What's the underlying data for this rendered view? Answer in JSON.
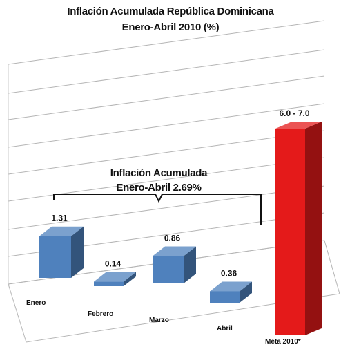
{
  "chart_data": {
    "type": "bar",
    "title": "Inflación Acumulada República Dominicana",
    "subtitle": "Enero-Abril 2010 (%)",
    "categories": [
      "Enero",
      "Febrero",
      "Marzo",
      "Abril",
      "Meta 2010*"
    ],
    "values": [
      1.31,
      0.14,
      0.86,
      0.36,
      6.5
    ],
    "data_labels": [
      "1.31",
      "0.14",
      "0.86",
      "0.36",
      "6.0 - 7.0"
    ],
    "colors": [
      "#4f81bd",
      "#4f81bd",
      "#4f81bd",
      "#4f81bd",
      "#e41a1a"
    ],
    "annotation": {
      "line1": "Inflación Acumulada",
      "line2": "Enero-Abril  2.69%"
    },
    "grid": true,
    "legend": "none"
  }
}
